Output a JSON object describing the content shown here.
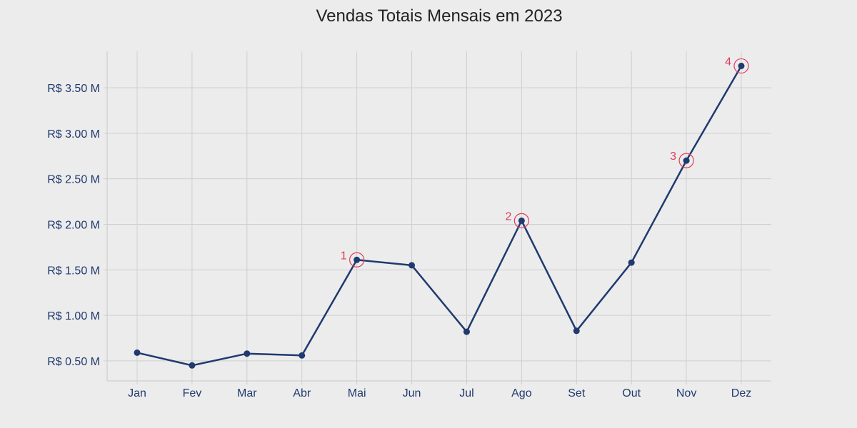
{
  "chart_data": {
    "type": "line",
    "title": "Vendas Totais Mensais em 2023",
    "xlabel": "",
    "ylabel": "",
    "categories": [
      "Jan",
      "Fev",
      "Mar",
      "Abr",
      "Mai",
      "Jun",
      "Jul",
      "Ago",
      "Set",
      "Out",
      "Nov",
      "Dez"
    ],
    "series": [
      {
        "values": [
          0.59,
          0.45,
          0.58,
          0.56,
          1.61,
          1.55,
          0.82,
          2.04,
          0.83,
          1.58,
          2.7,
          3.74
        ]
      }
    ],
    "ylim": [
      0.28,
      3.9
    ],
    "yticks": [
      {
        "value": 0.5,
        "label": "R$ 0.50 M"
      },
      {
        "value": 1.0,
        "label": "R$ 1.00 M"
      },
      {
        "value": 1.5,
        "label": "R$ 1.50 M"
      },
      {
        "value": 2.0,
        "label": "R$ 2.00 M"
      },
      {
        "value": 2.5,
        "label": "R$ 2.50 M"
      },
      {
        "value": 3.0,
        "label": "R$ 3.00 M"
      },
      {
        "value": 3.5,
        "label": "R$ 3.50 M"
      }
    ],
    "annotations": [
      {
        "category": "Mai",
        "label": "1"
      },
      {
        "category": "Ago",
        "label": "2"
      },
      {
        "category": "Nov",
        "label": "3"
      },
      {
        "category": "Dez",
        "label": "4"
      }
    ],
    "grid": true,
    "colors": {
      "line": "#1f3a6e",
      "marker": "#1f3a6e",
      "tick_text": "#1f3a6e",
      "grid": "#cfcfcf",
      "highlight": "#e03c5a"
    }
  }
}
